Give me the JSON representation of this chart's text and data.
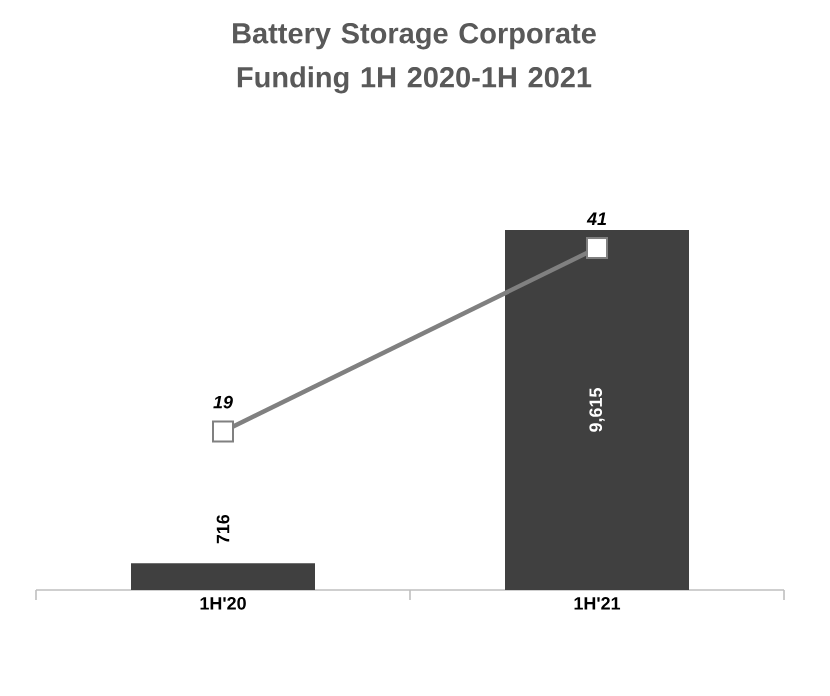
{
  "chart_data": {
    "type": "bar",
    "title": "Battery Storage Corporate Funding 1H 2020-1H 2021",
    "categories": [
      "1H'20",
      "1H'21"
    ],
    "series": [
      {
        "color": "#404040",
        "values": [
          716,
          9615
        ],
        "value_labels": [
          "716",
          "9,615"
        ]
      },
      {
        "type": "line",
        "axis": "y2",
        "color": "#808080",
        "marker": "square",
        "values": [
          19,
          41
        ],
        "value_labels": [
          "19",
          "41"
        ]
      }
    ]
  }
}
